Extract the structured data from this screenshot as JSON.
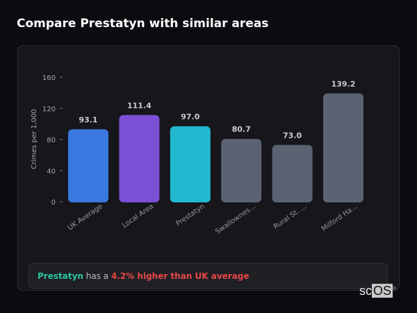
{
  "title": "Compare Prestatyn with similar areas",
  "chart_data": {
    "type": "bar",
    "title": "",
    "xlabel": "",
    "ylabel": "Crimes per 1,000",
    "ylim": [
      0,
      160
    ],
    "yticks": [
      0,
      40,
      80,
      120,
      160
    ],
    "grid": false,
    "categories": [
      "UK Average",
      "Local Area",
      "Prestatyn",
      "Swallownes...",
      "Rural St. ...",
      "Milford Ha..."
    ],
    "values": [
      93.1,
      111.4,
      97.0,
      80.7,
      73.0,
      139.2
    ],
    "value_labels": [
      "93.1",
      "111.4",
      "97.0",
      "80.7",
      "73.0",
      "139.2"
    ],
    "colors": [
      "#3a78e0",
      "#7b4fd6",
      "#22b8d0",
      "#5b6272",
      "#5b6272",
      "#5b6272"
    ]
  },
  "summary": {
    "area": "Prestatyn",
    "middle": " has a ",
    "highlight": "4.2% higher than UK average"
  },
  "logo": {
    "text_a": "sc",
    "text_b": "OS",
    "mark": "®"
  }
}
